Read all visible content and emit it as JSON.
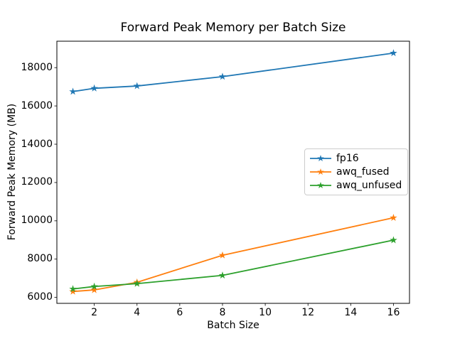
{
  "chart_data": {
    "type": "line",
    "title": "Forward Peak Memory per Batch Size",
    "xlabel": "Batch Size",
    "ylabel": "Forward Peak Memory (MB)",
    "x": [
      1,
      2,
      4,
      8,
      16
    ],
    "series": [
      {
        "name": "fp16",
        "color": "#1f77b4",
        "marker": "star",
        "values": [
          16750,
          16920,
          17040,
          17530,
          18760
        ]
      },
      {
        "name": "awq_fused",
        "color": "#ff7f0e",
        "marker": "star",
        "values": [
          6310,
          6390,
          6790,
          8200,
          10160
        ]
      },
      {
        "name": "awq_unfused",
        "color": "#2ca02c",
        "marker": "star",
        "values": [
          6440,
          6570,
          6720,
          7150,
          8990
        ]
      }
    ],
    "xticks": [
      2,
      4,
      6,
      8,
      10,
      12,
      14,
      16
    ],
    "yticks": [
      6000,
      8000,
      10000,
      12000,
      14000,
      16000,
      18000
    ],
    "xlim": [
      0.25,
      16.75
    ],
    "ylim": [
      5690,
      19380
    ],
    "grid": false,
    "legend": {
      "position": "center right",
      "entries": [
        "fp16",
        "awq_fused",
        "awq_unfused"
      ]
    },
    "background_color": "#ffffff",
    "spine_color": "#000000"
  }
}
